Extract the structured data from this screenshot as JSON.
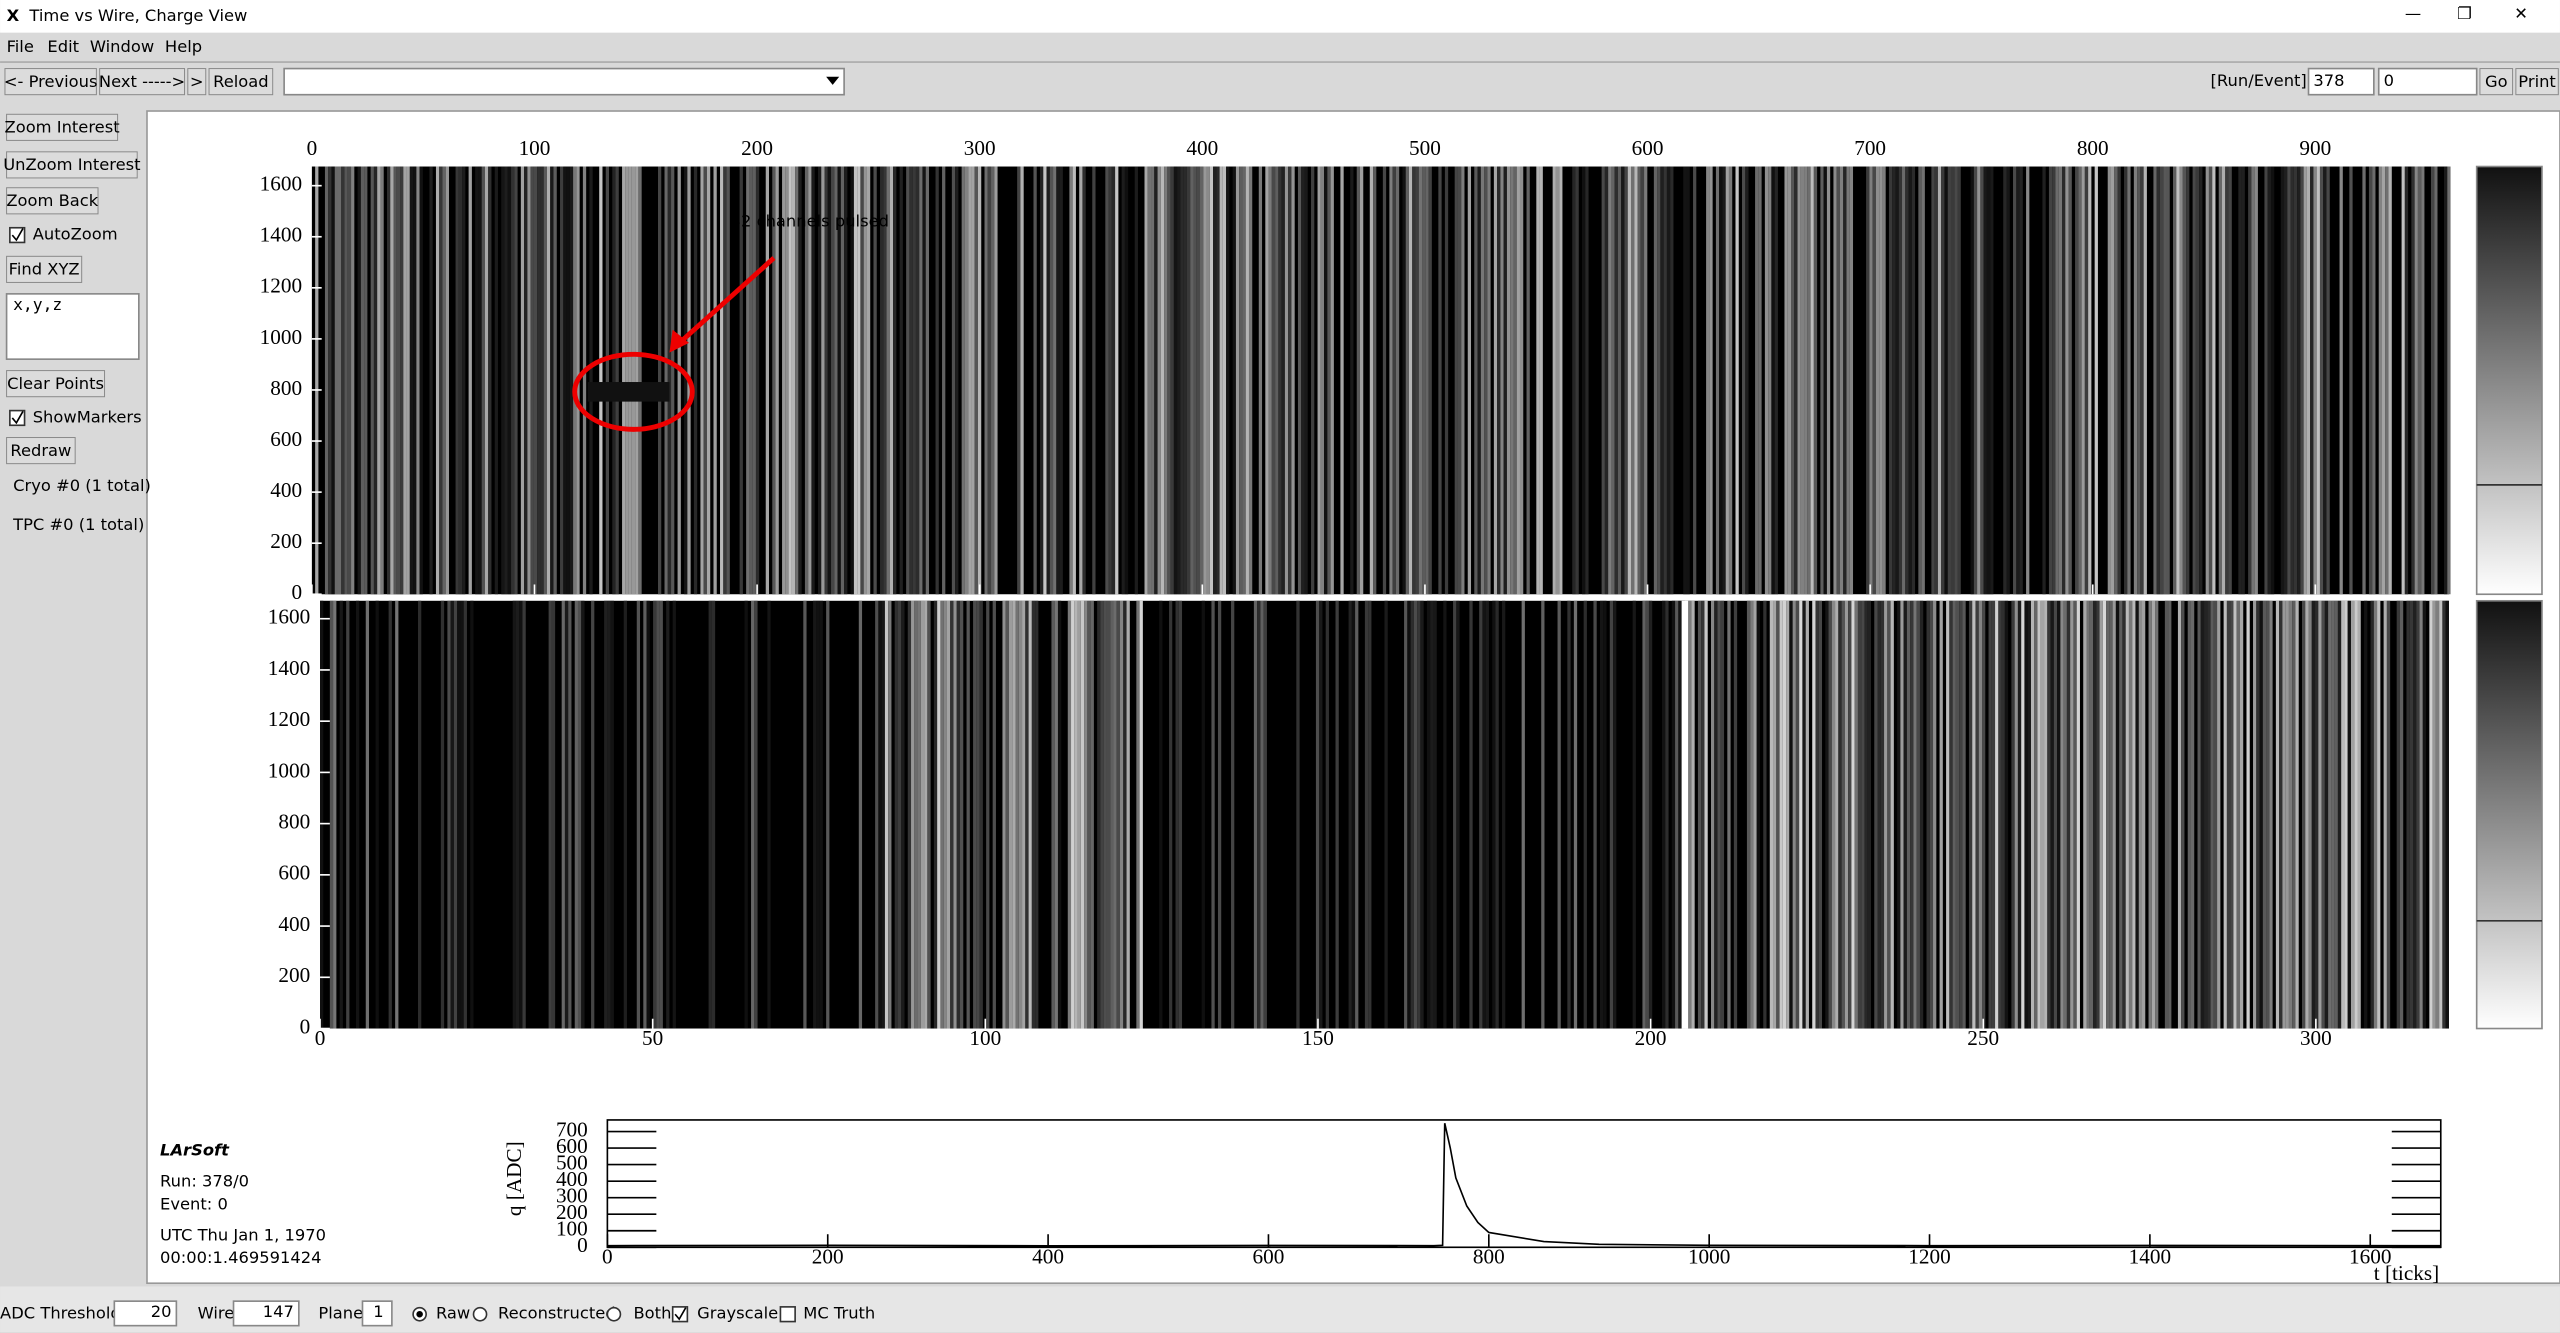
{
  "window": {
    "title": "Time vs Wire, Charge View",
    "menu": [
      "File",
      "Edit",
      "Window",
      "Help"
    ]
  },
  "toolbar": {
    "buttons": [
      "<- Previous",
      "Next ----->",
      ">",
      "Reload"
    ],
    "run_event_label": "[Run/Event]=",
    "run": "378",
    "event": "0",
    "go": "Go",
    "print": "Print"
  },
  "sidebar": {
    "buttons": [
      "Zoom Interest",
      "UnZoom Interest",
      "Zoom Back"
    ],
    "autozoom": "AutoZoom",
    "find": "Find XYZ",
    "placeholder": "x,y,z",
    "clear": "Clear Points",
    "show_markers": "ShowMarkers",
    "redraw": "Redraw",
    "cryo": "Cryo #0 (1 total)",
    "tpc": "TPC  #0 (1 total)"
  },
  "plane_views": [
    {
      "xlim": [
        0,
        960
      ],
      "ylim": [
        0,
        1675
      ],
      "xticks": [
        0,
        100,
        200,
        300,
        400,
        500,
        600,
        700,
        800,
        900
      ],
      "yticks": [
        0,
        200,
        400,
        600,
        800,
        1000,
        1200,
        1400,
        1600
      ]
    },
    {
      "xlim": [
        0,
        320
      ],
      "ylim": [
        0,
        1670
      ],
      "xticks": [
        0,
        50,
        100,
        150,
        200,
        250,
        300
      ],
      "yticks": [
        0,
        200,
        400,
        600,
        800,
        1000,
        1200,
        1400,
        1600
      ]
    }
  ],
  "annotation": "32 channels pulsed",
  "info": {
    "title": "LArSoft",
    "run": "Run:   378/0",
    "event": "Event: 0",
    "date": "UTC Thu Jan 1, 1970",
    "time": "00:00:1.469591424"
  },
  "waveform": {
    "x": [
      0,
      200,
      400,
      600,
      750,
      758,
      760,
      765,
      770,
      780,
      790,
      800,
      850,
      900,
      1000,
      1200,
      1400,
      1664
    ],
    "values": [
      10,
      12,
      9,
      11,
      10,
      12,
      750,
      600,
      420,
      250,
      150,
      90,
      35,
      18,
      12,
      10,
      11,
      10
    ],
    "xlim": [
      0,
      1664
    ],
    "ylim": [
      0,
      770
    ],
    "xticks": [
      0,
      200,
      400,
      600,
      800,
      1000,
      1200,
      1400,
      1600
    ],
    "yticks": [
      0,
      100,
      200,
      300,
      400,
      500,
      600,
      700
    ],
    "xlabel": "t [ticks]",
    "ylabel": "q [ADC]"
  },
  "statusbar": {
    "adc_label": "ADC Threshold",
    "adc": 20,
    "wire_label": "Wire",
    "wire": 147,
    "plane_label": "Plane",
    "plane": 1,
    "options": [
      "Raw",
      "Reconstructed",
      "Both"
    ],
    "grayscale": "Grayscale",
    "mc_truth": "MC Truth"
  }
}
